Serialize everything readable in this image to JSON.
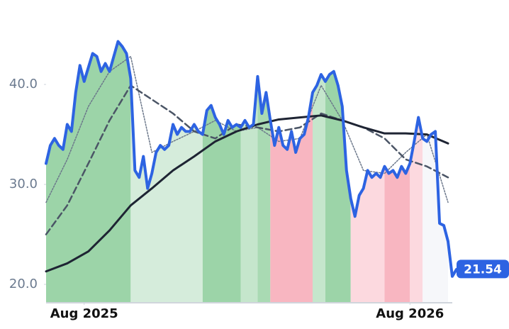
{
  "chart_data": {
    "type": "line",
    "xlim": [
      0,
      95
    ],
    "xticks": [
      {
        "value": 9,
        "label": "Aug 2025"
      },
      {
        "value": 86,
        "label": "Aug 2026"
      }
    ],
    "ylim": [
      18.16,
      47.03
    ],
    "yticks": [
      {
        "value": 20,
        "label": "20.0"
      },
      {
        "value": 30,
        "label": "30.0"
      },
      {
        "value": 40,
        "label": "40.0"
      }
    ],
    "grid": false,
    "series": [
      {
        "color": "#2d63e2",
        "style": "solid",
        "width": 4,
        "values": [
          32.1,
          33.9,
          34.6,
          33.9,
          33.5,
          36.0,
          35.3,
          39.2,
          41.9,
          40.3,
          41.7,
          43.1,
          42.8,
          41.3,
          42.1,
          41.3,
          42.8,
          44.3,
          43.8,
          43.1,
          40.6,
          31.4,
          30.7,
          32.8,
          29.6,
          31.1,
          33.2,
          33.9,
          33.5,
          33.9,
          36.0,
          35.0,
          35.7,
          35.3,
          35.3,
          36.0,
          35.3,
          35.0,
          37.4,
          37.9,
          36.7,
          36.0,
          35.0,
          36.4,
          35.7,
          36.0,
          35.7,
          36.4,
          35.7,
          36.0,
          40.8,
          37.1,
          39.2,
          36.4,
          33.9,
          35.7,
          33.9,
          33.5,
          35.3,
          33.2,
          34.6,
          35.0,
          36.7,
          39.2,
          39.9,
          41.0,
          40.3,
          41.0,
          41.3,
          39.9,
          37.8,
          31.4,
          28.6,
          26.8,
          28.9,
          29.6,
          31.4,
          30.7,
          31.1,
          30.7,
          31.8,
          31.1,
          31.4,
          30.7,
          31.8,
          31.1,
          32.1,
          34.3,
          36.7,
          34.6,
          34.3,
          35.0,
          35.3,
          26.1,
          25.9,
          24.3,
          20.8,
          21.5,
          21.54
        ]
      },
      {
        "color": "#1e2433",
        "style": "solid",
        "width": 3,
        "x": [
          0,
          5,
          10,
          15,
          20,
          25,
          30,
          35,
          40,
          45,
          50,
          55,
          60,
          65,
          70,
          75,
          80,
          85,
          90,
          95
        ],
        "values": [
          21.3,
          22.1,
          23.3,
          25.4,
          27.9,
          29.6,
          31.4,
          32.8,
          34.3,
          35.3,
          36.0,
          36.5,
          36.7,
          36.9,
          36.4,
          35.7,
          35.1,
          35.1,
          35.0,
          34.1
        ]
      },
      {
        "color": "#4b5566",
        "style": "dashed",
        "width": 2.5,
        "x": [
          0,
          5,
          10,
          15,
          20,
          25,
          30,
          35,
          40,
          45,
          50,
          55,
          60,
          65,
          70,
          75,
          80,
          85,
          90,
          95
        ],
        "values": [
          25.0,
          27.9,
          32.1,
          36.4,
          39.9,
          38.5,
          37.1,
          35.3,
          34.6,
          36.0,
          35.7,
          35.3,
          35.7,
          37.1,
          36.4,
          35.7,
          34.6,
          32.5,
          31.8,
          30.7
        ]
      },
      {
        "color": "#6b778a",
        "style": "dotted",
        "width": 1.5,
        "x": [
          0,
          5,
          10,
          15,
          20,
          25,
          30,
          35,
          40,
          45,
          50,
          55,
          60,
          65,
          70,
          75,
          80,
          85,
          90,
          95
        ],
        "values": [
          28.2,
          32.5,
          37.8,
          41.3,
          42.8,
          33.2,
          34.3,
          35.3,
          36.4,
          35.3,
          35.7,
          34.3,
          34.6,
          39.9,
          36.4,
          31.4,
          31.1,
          33.2,
          35.0,
          28.2
        ]
      }
    ],
    "bands": [
      {
        "start": 0,
        "end": 20,
        "color": "#9cd4a8"
      },
      {
        "start": 20,
        "end": 37,
        "color": "#d5ecdb"
      },
      {
        "start": 37,
        "end": 46,
        "color": "#9cd4a8"
      },
      {
        "start": 46,
        "end": 50,
        "color": "#c5e6cc"
      },
      {
        "start": 50,
        "end": 53,
        "color": "#a9dab3"
      },
      {
        "start": 53,
        "end": 63,
        "color": "#f8b6c1"
      },
      {
        "start": 63,
        "end": 66,
        "color": "#c5e6cc"
      },
      {
        "start": 66,
        "end": 72,
        "color": "#9cd4a8"
      },
      {
        "start": 72,
        "end": 80,
        "color": "#fcd9df"
      },
      {
        "start": 80,
        "end": 86,
        "color": "#f8b6c1"
      },
      {
        "start": 86,
        "end": 89,
        "color": "#fcd9df"
      },
      {
        "start": 89,
        "end": 95,
        "color": "#f6f7fa"
      }
    ]
  }
}
